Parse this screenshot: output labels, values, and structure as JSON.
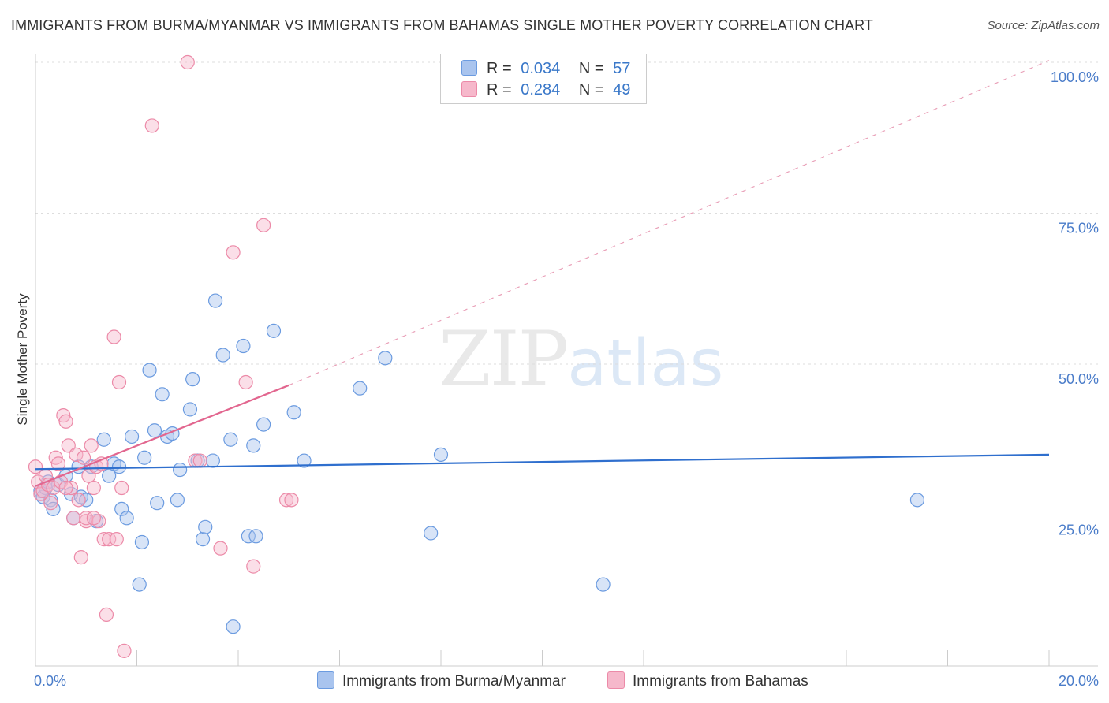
{
  "header": {
    "title": "IMMIGRANTS FROM BURMA/MYANMAR VS IMMIGRANTS FROM BAHAMAS SINGLE MOTHER POVERTY CORRELATION CHART",
    "source": "Source: ZipAtlas.com"
  },
  "legend": {
    "rows": [
      {
        "r_label": "R =",
        "r_value": "0.034",
        "n_label": "N =",
        "n_value": "57",
        "color": "#a9c4ee"
      },
      {
        "r_label": "R =",
        "r_value": "0.284",
        "n_label": "N =",
        "n_value": "49",
        "color": "#f6b8cb"
      }
    ]
  },
  "bottom_legend": {
    "series1": "Immigrants from Burma/Myanmar",
    "series2": "Immigrants from Bahamas"
  },
  "watermark": {
    "zip": "ZIP",
    "atlas": "atlas"
  },
  "chart_data": {
    "type": "scatter",
    "title": "IMMIGRANTS FROM BURMA/MYANMAR VS IMMIGRANTS FROM BAHAMAS SINGLE MOTHER POVERTY CORRELATION CHART",
    "xlabel": "",
    "ylabel": "Single Mother Poverty",
    "xlim": [
      0,
      20
    ],
    "ylim": [
      0,
      100
    ],
    "x_tick_labels": [
      "0.0%",
      "20.0%"
    ],
    "y_ticks": [
      25,
      50,
      75,
      100
    ],
    "y_tick_labels": [
      "25.0%",
      "50.0%",
      "75.0%",
      "100.0%"
    ],
    "grid": true,
    "series": [
      {
        "name": "Immigrants from Burma/Myanmar",
        "color": "#a9c4ee",
        "stroke": "#6b9be0",
        "trend": {
          "x": [
            0,
            20
          ],
          "y": [
            32.6,
            35.0
          ],
          "color": "#2f6fce",
          "dashed": false
        },
        "points": [
          [
            0.1,
            29.0
          ],
          [
            0.15,
            28.0
          ],
          [
            0.2,
            29.5
          ],
          [
            0.25,
            30.5
          ],
          [
            0.3,
            27.5
          ],
          [
            0.35,
            26.0
          ],
          [
            0.45,
            30.0
          ],
          [
            0.6,
            31.5
          ],
          [
            0.7,
            28.5
          ],
          [
            0.75,
            24.5
          ],
          [
            0.85,
            33.0
          ],
          [
            0.9,
            28.0
          ],
          [
            1.0,
            27.5
          ],
          [
            1.1,
            33.0
          ],
          [
            1.2,
            24.0
          ],
          [
            1.35,
            37.5
          ],
          [
            1.45,
            31.5
          ],
          [
            1.55,
            33.5
          ],
          [
            1.65,
            33.0
          ],
          [
            1.7,
            26.0
          ],
          [
            1.8,
            24.5
          ],
          [
            1.9,
            38.0
          ],
          [
            2.05,
            13.5
          ],
          [
            2.1,
            20.5
          ],
          [
            2.15,
            34.5
          ],
          [
            2.25,
            49.0
          ],
          [
            2.35,
            39.0
          ],
          [
            2.4,
            27.0
          ],
          [
            2.5,
            45.0
          ],
          [
            2.6,
            38.0
          ],
          [
            2.7,
            38.5
          ],
          [
            2.8,
            27.5
          ],
          [
            2.85,
            32.5
          ],
          [
            3.05,
            42.5
          ],
          [
            3.1,
            47.5
          ],
          [
            3.2,
            34.0
          ],
          [
            3.3,
            21.0
          ],
          [
            3.35,
            23.0
          ],
          [
            3.5,
            34.0
          ],
          [
            3.55,
            60.5
          ],
          [
            3.7,
            51.5
          ],
          [
            3.85,
            37.5
          ],
          [
            3.9,
            6.5
          ],
          [
            4.1,
            53.0
          ],
          [
            4.2,
            21.5
          ],
          [
            4.3,
            36.5
          ],
          [
            4.35,
            21.5
          ],
          [
            4.5,
            40.0
          ],
          [
            4.7,
            55.5
          ],
          [
            5.1,
            42.0
          ],
          [
            5.3,
            34.0
          ],
          [
            6.4,
            46.0
          ],
          [
            6.9,
            51.0
          ],
          [
            7.8,
            22.0
          ],
          [
            8.0,
            35.0
          ],
          [
            11.2,
            13.5
          ],
          [
            17.4,
            27.5
          ]
        ]
      },
      {
        "name": "Immigrants from Bahamas",
        "color": "#f6b8cb",
        "stroke": "#ec8aa8",
        "trend_solid": {
          "x": [
            0,
            5.0
          ],
          "y": [
            29.8,
            46.5
          ],
          "color": "#e2668f"
        },
        "trend_dashed": {
          "x": [
            5.0,
            20
          ],
          "y": [
            46.5,
            100.3
          ],
          "color": "#e9a0b8"
        },
        "points": [
          [
            0.0,
            33.0
          ],
          [
            0.05,
            30.5
          ],
          [
            0.1,
            28.5
          ],
          [
            0.15,
            29.0
          ],
          [
            0.2,
            31.5
          ],
          [
            0.25,
            30.0
          ],
          [
            0.3,
            27.0
          ],
          [
            0.35,
            29.5
          ],
          [
            0.4,
            34.5
          ],
          [
            0.45,
            33.5
          ],
          [
            0.5,
            30.5
          ],
          [
            0.55,
            41.5
          ],
          [
            0.6,
            40.5
          ],
          [
            0.65,
            36.5
          ],
          [
            0.7,
            29.5
          ],
          [
            0.75,
            24.5
          ],
          [
            0.8,
            35.0
          ],
          [
            0.85,
            27.5
          ],
          [
            0.9,
            18.0
          ],
          [
            0.95,
            34.5
          ],
          [
            1.0,
            24.0
          ],
          [
            1.05,
            31.5
          ],
          [
            1.1,
            36.5
          ],
          [
            1.15,
            29.5
          ],
          [
            1.2,
            33.0
          ],
          [
            1.25,
            24.0
          ],
          [
            1.3,
            33.5
          ],
          [
            1.35,
            21.0
          ],
          [
            1.4,
            8.5
          ],
          [
            1.45,
            21.0
          ],
          [
            1.55,
            54.5
          ],
          [
            1.6,
            21.0
          ],
          [
            1.65,
            47.0
          ],
          [
            1.7,
            29.5
          ],
          [
            1.75,
            2.5
          ],
          [
            2.3,
            89.5
          ],
          [
            3.0,
            100.0
          ],
          [
            3.15,
            34.0
          ],
          [
            3.25,
            34.0
          ],
          [
            3.65,
            19.5
          ],
          [
            3.9,
            68.5
          ],
          [
            4.15,
            47.0
          ],
          [
            4.3,
            16.5
          ],
          [
            4.5,
            73.0
          ],
          [
            4.95,
            27.5
          ],
          [
            5.05,
            27.5
          ],
          [
            1.0,
            24.5
          ],
          [
            1.15,
            24.5
          ],
          [
            0.6,
            29.5
          ]
        ]
      }
    ]
  }
}
